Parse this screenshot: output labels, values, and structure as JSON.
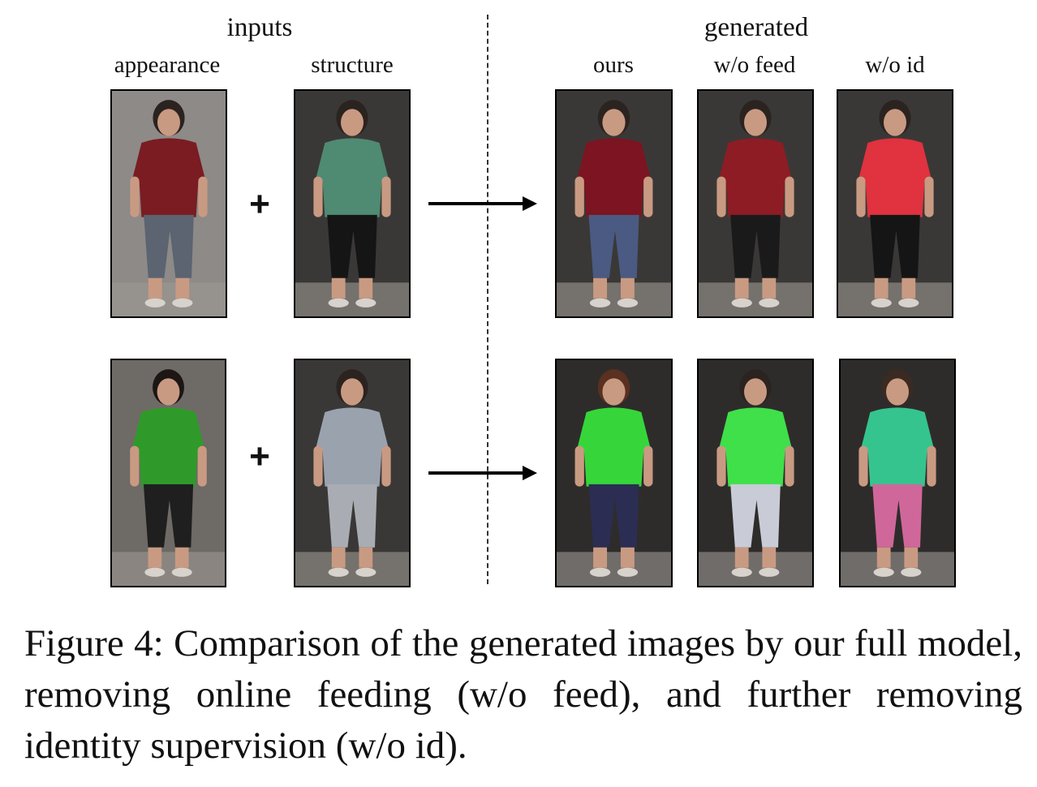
{
  "header": {
    "inputs_group": "inputs",
    "generated_group": "generated",
    "columns": {
      "appearance": "appearance",
      "structure": "structure",
      "ours": "ours",
      "wo_feed": "w/o feed",
      "wo_id": "w/o id"
    }
  },
  "operators": {
    "plus": "+"
  },
  "caption": "Figure 4: Comparison of the generated images by our full model, removing online feeding (w/o feed), and further removing identity supervision (w/o id).",
  "rows": [
    {
      "appearance": {
        "shirt": "#7a1c22",
        "pants": "#5b6470",
        "hair": "#2b2320",
        "bg": "#8d8a88"
      },
      "structure": {
        "shirt": "#4f8a72",
        "pants": "#151515",
        "hair": "#2b2320",
        "bg": "#3a3836"
      },
      "ours": {
        "shirt": "#7d1421",
        "pants": "#4a5a82",
        "hair": "#2b2320",
        "bg": "#3a3836"
      },
      "wo_feed": {
        "shirt": "#8d1c25",
        "pants": "#1a1a1a",
        "hair": "#2b2320",
        "bg": "#3a3836"
      },
      "wo_id": {
        "shirt": "#e0323f",
        "pants": "#151515",
        "hair": "#2b2320",
        "bg": "#3a3836"
      }
    },
    {
      "appearance": {
        "shirt": "#2f9a2a",
        "pants": "#1f1f1f",
        "hair": "#1c1615",
        "bg": "#6e6a66"
      },
      "structure": {
        "shirt": "#9aa2ae",
        "pants": "#a9adb3",
        "hair": "#2b2320",
        "bg": "#3a3836"
      },
      "ours": {
        "shirt": "#36d63a",
        "pants": "#2b2d52",
        "hair": "#5a3020",
        "bg": "#2e2c2b"
      },
      "wo_feed": {
        "shirt": "#3fe04a",
        "pants": "#c9ccd6",
        "hair": "#2b2320",
        "bg": "#2e2c2b"
      },
      "wo_id": {
        "shirt": "#35c48e",
        "pants": "#d0679a",
        "hair": "#3a2a22",
        "bg": "#2e2c2b"
      }
    }
  ]
}
